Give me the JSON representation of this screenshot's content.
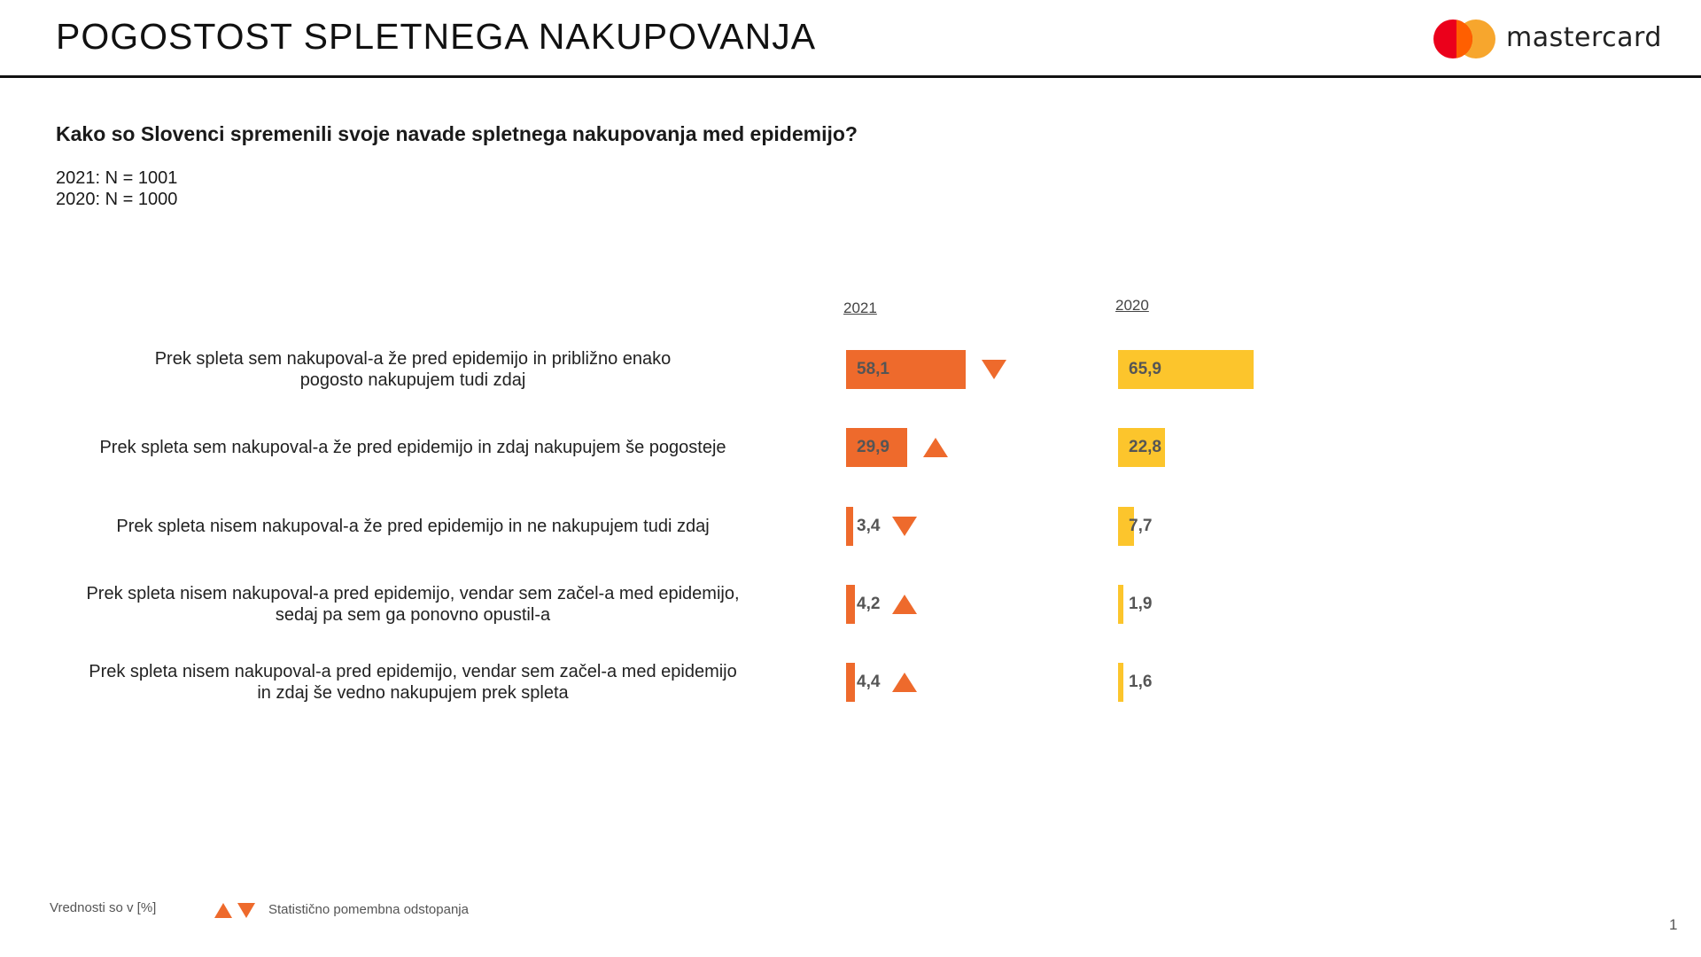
{
  "header": {
    "title": "POGOSTOST SPLETNEGA NAKUPOVANJA",
    "brand": "mastercard",
    "brand_colors": {
      "red": "#eb001b",
      "orange": "#f79e1b",
      "overlap": "#ff5f00"
    }
  },
  "question": "Kako so Slovenci spremenili svoje navade spletnega nakupovanja med epidemijo?",
  "samples": [
    "2021: N = 1001",
    "2020: N = 1000"
  ],
  "footer": {
    "note": "Vrednosti so v [%]",
    "significance": "Statistično pomembna odstopanja",
    "page": "1"
  },
  "chart_data": {
    "type": "bar",
    "orientation": "horizontal",
    "title": "Kako so Slovenci spremenili svoje navade spletnega nakupovanja med epidemijo?",
    "unit": "%",
    "xlim": [
      0,
      100
    ],
    "categories": [
      [
        "Prek spleta sem nakupoval-a že pred epidemijo in približno enako",
        "pogosto nakupujem tudi zdaj"
      ],
      [
        "Prek spleta sem nakupoval-a že pred epidemijo in zdaj nakupujem še pogosteje"
      ],
      [
        "Prek spleta nisem nakupoval-a že pred epidemijo in ne nakupujem tudi zdaj"
      ],
      [
        "Prek spleta nisem nakupoval-a pred epidemijo, vendar sem začel-a med epidemijo,",
        "sedaj pa sem ga ponovno opustil-a"
      ],
      [
        "Prek spleta nisem nakupoval-a pred epidemijo, vendar sem začel-a med epidemijo",
        "in zdaj še vedno nakupujem prek spleta"
      ]
    ],
    "series": [
      {
        "name": "2021",
        "color": "#ee6a2c",
        "values": [
          58.1,
          29.9,
          3.4,
          4.2,
          4.4
        ],
        "labels": [
          "58,1",
          "29,9",
          "3,4",
          "4,2",
          "4,4"
        ],
        "significance": [
          "down",
          "up",
          "down",
          "up",
          "up"
        ]
      },
      {
        "name": "2020",
        "color": "#fcc52c",
        "values": [
          65.9,
          22.8,
          7.7,
          1.9,
          1.6
        ],
        "labels": [
          "65,9",
          "22,8",
          "7,7",
          "1,9",
          "1,6"
        ]
      }
    ],
    "marker_color": "#ee6a2c"
  }
}
